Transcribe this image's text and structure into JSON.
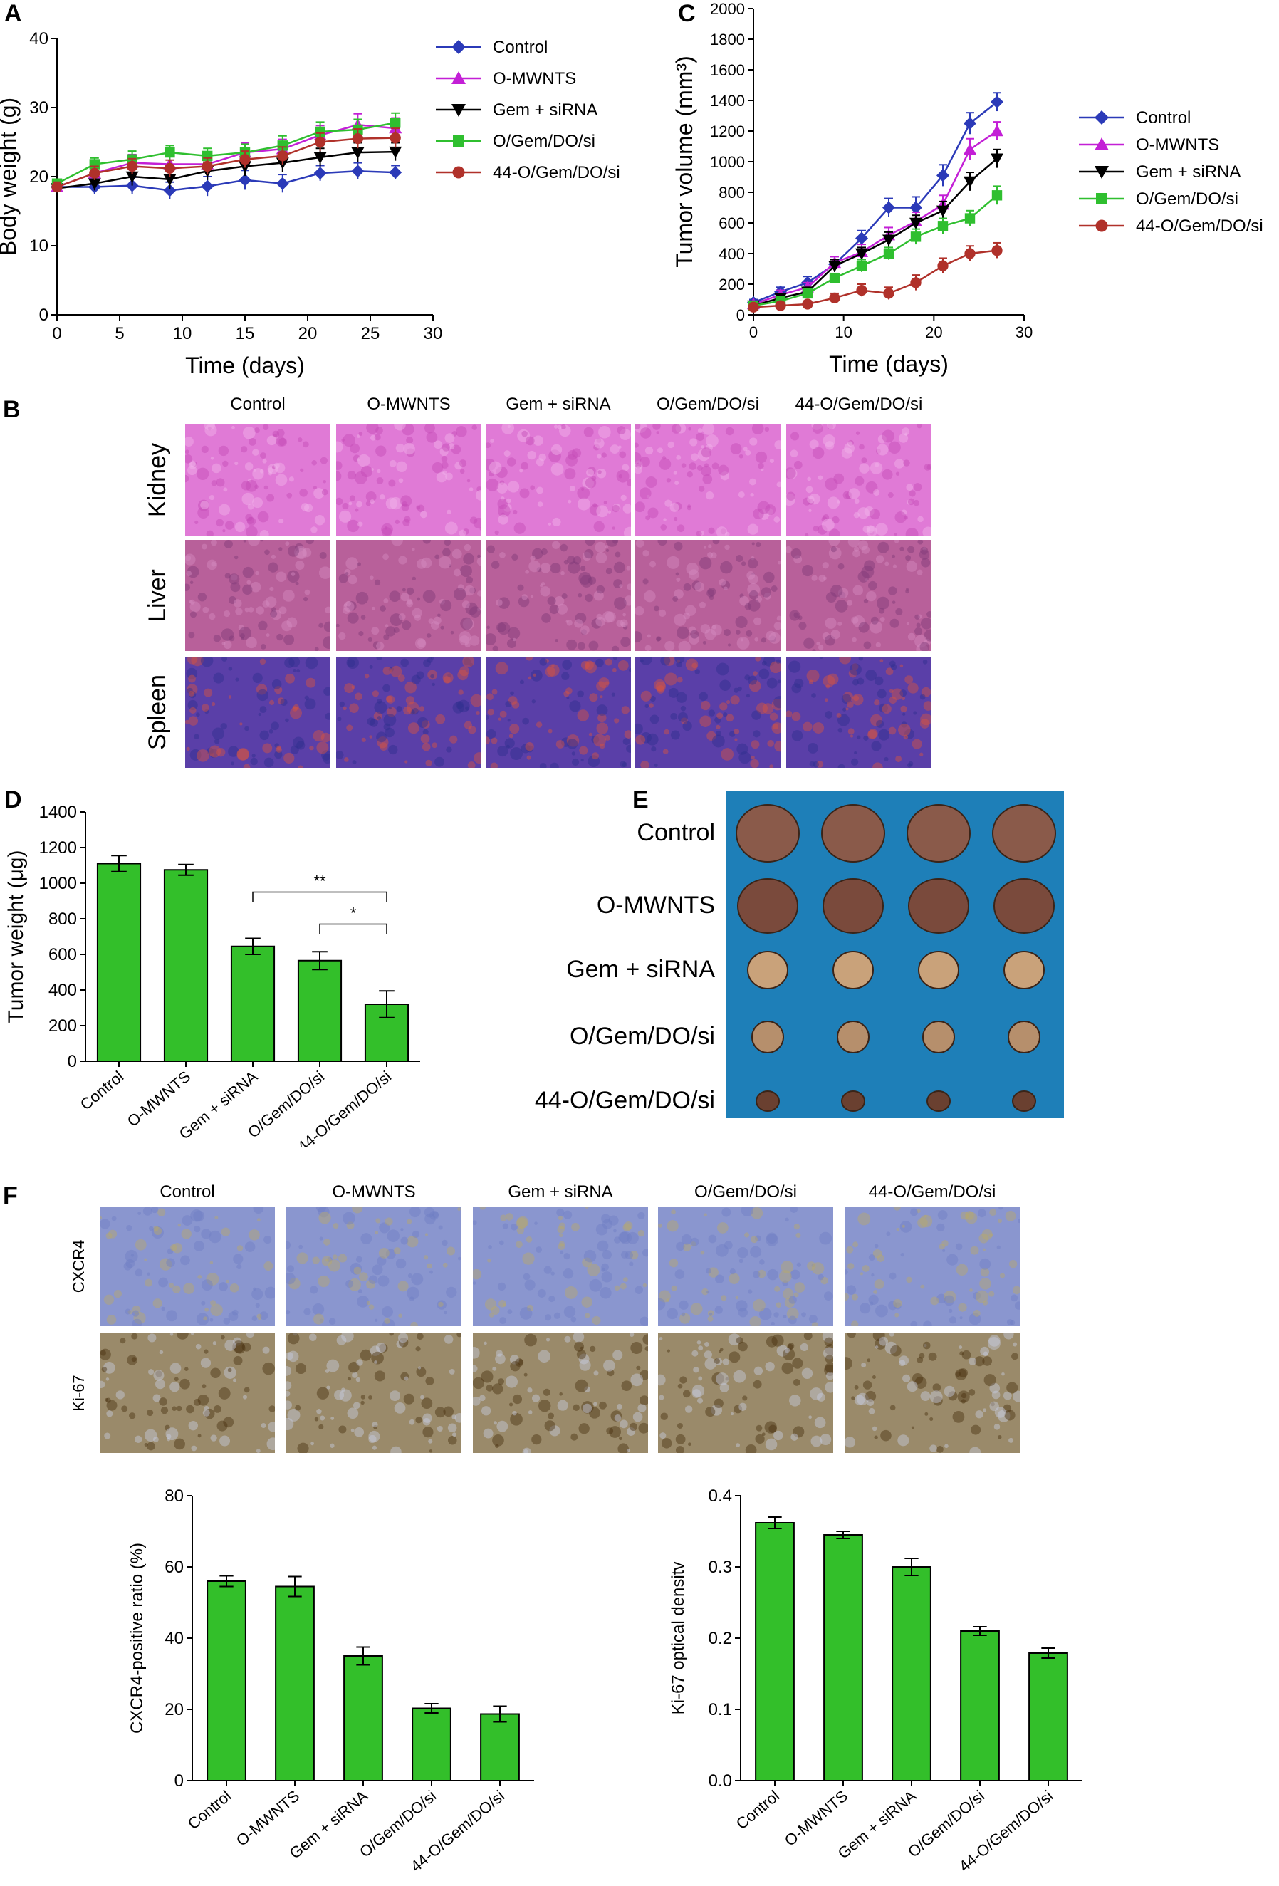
{
  "panels": {
    "a": "A",
    "b": "B",
    "c": "C",
    "d": "D",
    "e": "E",
    "f": "F"
  },
  "groups": [
    "Control",
    "O-MWNTS",
    "Gem + siRNA",
    "O/Gem/DO/si",
    "44-O/Gem/DO/si"
  ],
  "colors": {
    "control": "#2b3ab8",
    "omwnts": "#c31fd6",
    "gem": "#000000",
    "ogem": "#2fbf2f",
    "o44": "#b0312a",
    "bar": "#33bf2a",
    "he_kidney": "#e07ad6",
    "he_liver": "#b8609a",
    "he_spleen": "#5a3fa8",
    "ihc_cxcr4": "#8a96cf",
    "ihc_ki67": "#9a8a6a",
    "tumor_bg": "#1e7fb8"
  },
  "chart_data": [
    {
      "id": "A",
      "type": "line",
      "xlabel": "Time (days)",
      "ylabel": "Body weight (g)",
      "xlim": [
        0,
        30
      ],
      "ylim": [
        0,
        40
      ],
      "xticks": [
        0,
        5,
        10,
        15,
        20,
        25,
        30
      ],
      "yticks": [
        0,
        10,
        20,
        30,
        40
      ],
      "legend_position": "right",
      "x": [
        0,
        3,
        6,
        9,
        12,
        15,
        18,
        21,
        24,
        27
      ],
      "series": [
        {
          "name": "Control",
          "marker": "diamond",
          "values": [
            18.5,
            18.5,
            18.7,
            18,
            18.6,
            19.5,
            19,
            20.5,
            20.8,
            20.6
          ],
          "err": [
            0.8,
            1,
            1.2,
            1.2,
            1.4,
            1.4,
            1.3,
            1.1,
            1.2,
            1
          ]
        },
        {
          "name": "O-MWNTS",
          "marker": "triangle-up",
          "values": [
            18.5,
            20.5,
            22,
            21.8,
            21.8,
            23.5,
            24,
            26,
            27.5,
            27
          ],
          "err": [
            0.8,
            1,
            1.2,
            1.2,
            1.2,
            1.4,
            1.4,
            1.4,
            1.6,
            1.5
          ]
        },
        {
          "name": "Gem + siRNA",
          "marker": "triangle-down",
          "values": [
            18.3,
            19,
            20,
            19.6,
            20.8,
            21.5,
            22,
            22.8,
            23.5,
            23.6
          ],
          "err": [
            0.7,
            1,
            1.3,
            1.4,
            1.3,
            1.4,
            1.3,
            1.3,
            1.4,
            1.3
          ]
        },
        {
          "name": "O/Gem/DO/si",
          "marker": "square",
          "values": [
            19,
            21.8,
            22.5,
            23.5,
            23,
            23.5,
            24.5,
            26.5,
            26.8,
            27.8
          ],
          "err": [
            0.6,
            0.9,
            1.2,
            1,
            1.1,
            1.2,
            1.4,
            1.4,
            1.5,
            1.4
          ]
        },
        {
          "name": "44-O/Gem/DO/si",
          "marker": "circle",
          "values": [
            18.5,
            20.5,
            21.5,
            21.2,
            21.5,
            22.5,
            23,
            25,
            25.5,
            25.6
          ],
          "err": [
            0.7,
            1,
            1.1,
            1.2,
            1.2,
            1.2,
            1.3,
            1.3,
            1.4,
            1.4
          ]
        }
      ]
    },
    {
      "id": "C",
      "type": "line",
      "xlabel": "Time (days)",
      "ylabel": "Tumor volume (mm³)",
      "xlim": [
        0,
        30
      ],
      "ylim": [
        0,
        2000
      ],
      "xticks": [
        0,
        10,
        20,
        30
      ],
      "yticks": [
        0,
        200,
        400,
        600,
        800,
        1000,
        1200,
        1400,
        1600,
        1800,
        2000
      ],
      "legend_position": "right",
      "x": [
        0,
        3,
        6,
        9,
        12,
        15,
        18,
        21,
        24,
        27
      ],
      "series": [
        {
          "name": "Control",
          "marker": "diamond",
          "values": [
            80,
            150,
            210,
            330,
            500,
            700,
            700,
            910,
            1250,
            1390
          ],
          "err": [
            20,
            30,
            40,
            50,
            50,
            60,
            70,
            70,
            70,
            60
          ]
        },
        {
          "name": "O-MWNTS",
          "marker": "triangle-up",
          "values": [
            70,
            130,
            180,
            340,
            410,
            520,
            610,
            720,
            1080,
            1200
          ],
          "err": [
            20,
            30,
            30,
            40,
            50,
            50,
            60,
            60,
            70,
            60
          ]
        },
        {
          "name": "Gem + siRNA",
          "marker": "triangle-down",
          "values": [
            60,
            110,
            150,
            320,
            400,
            490,
            600,
            680,
            870,
            1020
          ],
          "err": [
            20,
            20,
            30,
            40,
            40,
            50,
            50,
            60,
            60,
            60
          ]
        },
        {
          "name": "O/Gem/DO/si",
          "marker": "square",
          "values": [
            60,
            90,
            140,
            240,
            320,
            400,
            510,
            580,
            630,
            780
          ],
          "err": [
            20,
            20,
            30,
            30,
            40,
            40,
            50,
            50,
            50,
            60
          ]
        },
        {
          "name": "44-O/Gem/DO/si",
          "marker": "circle",
          "values": [
            50,
            60,
            70,
            110,
            160,
            140,
            210,
            320,
            400,
            420
          ],
          "err": [
            15,
            20,
            20,
            30,
            40,
            40,
            50,
            50,
            50,
            50
          ]
        }
      ]
    },
    {
      "id": "D",
      "type": "bar",
      "ylabel": "Tumor weight (μg)",
      "ylim": [
        0,
        1400
      ],
      "yticks": [
        0,
        200,
        400,
        600,
        800,
        1000,
        1200,
        1400
      ],
      "categories": [
        "Control",
        "O-MWNTS",
        "Gem + siRNA",
        "O/Gem/DO/si",
        "44-O/Gem/DO/si"
      ],
      "values": [
        1110,
        1075,
        645,
        565,
        320
      ],
      "err": [
        45,
        30,
        45,
        50,
        75
      ],
      "annotations": [
        {
          "from": 2,
          "to": 4,
          "label": "**",
          "y": 950
        },
        {
          "from": 3,
          "to": 4,
          "label": "*",
          "y": 770
        }
      ]
    },
    {
      "id": "F1",
      "type": "bar",
      "ylabel": "CXCR4-positive ratio (%)",
      "ylim": [
        0,
        80
      ],
      "yticks": [
        0,
        20,
        40,
        60,
        80
      ],
      "categories": [
        "Control",
        "O-MWNTS",
        "Gem + siRNA",
        "O/Gem/DO/si",
        "44-O/Gem/DO/si"
      ],
      "values": [
        56,
        54.5,
        35,
        20.3,
        18.7
      ],
      "err": [
        1.5,
        2.8,
        2.5,
        1.3,
        2.2
      ]
    },
    {
      "id": "F2",
      "type": "bar",
      "ylabel": "Ki-67 optical densitv",
      "ylim": [
        0,
        0.4
      ],
      "yticks": [
        0.0,
        0.1,
        0.2,
        0.3,
        0.4
      ],
      "categories": [
        "Control",
        "O-MWNTS",
        "Gem + siRNA",
        "O/Gem/DO/si",
        "44-O/Gem/DO/si"
      ],
      "values": [
        0.362,
        0.345,
        0.3,
        0.21,
        0.179
      ],
      "err": [
        0.008,
        0.005,
        0.012,
        0.006,
        0.007
      ]
    }
  ],
  "histology": {
    "b_rows": [
      "Kidney",
      "Liver",
      "Spleen"
    ],
    "f_rows": [
      "CXCR4",
      "Ki-67"
    ]
  }
}
